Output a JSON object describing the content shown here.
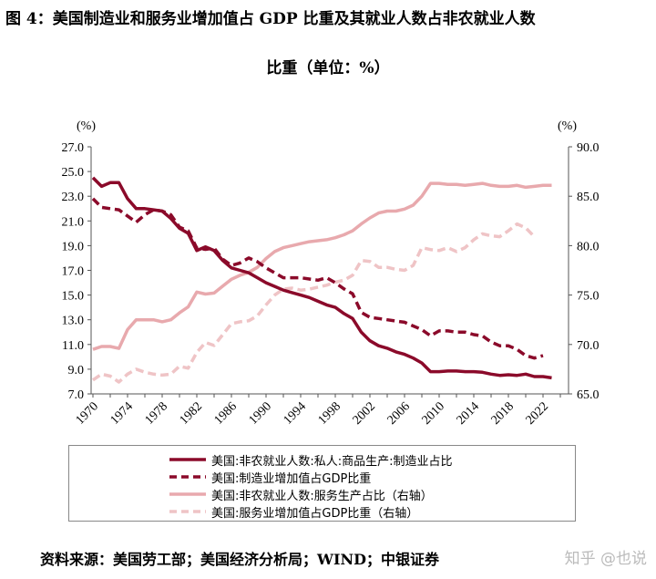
{
  "title_line1": "图 4：美国制造业和服务业增加值占 GDP 比重及其就业人数占非农就业人数",
  "title_line2": "比重（单位：%）",
  "source": "资料来源：美国劳工部；美国经济分析局；WIND；中银证券",
  "watermark": "知乎 @也说",
  "chart_data": {
    "type": "line",
    "left_unit": "(%)",
    "right_unit": "(%)",
    "ylim": [
      7,
      27
    ],
    "y2lim": [
      65,
      90
    ],
    "left_ticks": [
      "27.0",
      "25.0",
      "23.0",
      "21.0",
      "19.0",
      "17.0",
      "15.0",
      "13.0",
      "11.0",
      "9.0",
      "7.0"
    ],
    "right_ticks": [
      "90.0",
      "85.0",
      "80.0",
      "75.0",
      "70.0",
      "65.0"
    ],
    "x_ticks": [
      "1970",
      "1974",
      "1978",
      "1982",
      "1986",
      "1990",
      "1994",
      "1998",
      "2002",
      "2006",
      "2010",
      "2014",
      "2018",
      "2022"
    ],
    "x_start": 1970,
    "series": [
      {
        "name": "美国:非农就业人数:私人:商品生产:制造业占比",
        "axis": "left",
        "style": "solid",
        "color": "#8b0a2a",
        "values": [
          24.5,
          23.8,
          24.1,
          24.1,
          22.8,
          22.0,
          22.0,
          21.9,
          21.8,
          21.2,
          20.4,
          20.0,
          18.6,
          18.9,
          18.6,
          17.8,
          17.2,
          17.0,
          16.8,
          16.4,
          16.0,
          15.7,
          15.4,
          15.2,
          15.0,
          14.8,
          14.5,
          14.2,
          14.0,
          13.5,
          13.1,
          12.0,
          11.3,
          10.9,
          10.7,
          10.4,
          10.2,
          9.9,
          9.5,
          8.8,
          8.8,
          8.85,
          8.85,
          8.8,
          8.8,
          8.75,
          8.6,
          8.5,
          8.55,
          8.5,
          8.6,
          8.4,
          8.4,
          8.3
        ]
      },
      {
        "name": "美国:制造业增加值占GDP比重",
        "axis": "left",
        "style": "dashed",
        "color": "#8b0a2a",
        "values": [
          22.8,
          22.1,
          22.0,
          21.9,
          21.4,
          20.9,
          21.5,
          21.9,
          21.8,
          21.5,
          20.5,
          20.2,
          18.8,
          18.7,
          18.8,
          17.9,
          17.4,
          17.6,
          18.0,
          17.7,
          17.2,
          16.8,
          16.4,
          16.4,
          16.4,
          16.3,
          16.2,
          16.4,
          16.0,
          15.5,
          15.1,
          13.6,
          13.2,
          13.1,
          13.0,
          12.9,
          12.8,
          12.5,
          12.2,
          11.7,
          12.1,
          12.1,
          12.0,
          12.0,
          11.8,
          11.7,
          11.2,
          10.9,
          10.9,
          10.6,
          10.1,
          9.9,
          10.1
        ]
      },
      {
        "name": "美国:非农就业人数:服务生产占比（右轴）",
        "axis": "right",
        "style": "solid",
        "color": "#e8a9ad",
        "values": [
          69.5,
          69.8,
          69.8,
          69.6,
          71.5,
          72.5,
          72.5,
          72.5,
          72.3,
          72.5,
          73.2,
          73.8,
          75.3,
          75.1,
          75.2,
          75.9,
          76.6,
          77.0,
          77.3,
          77.8,
          78.7,
          79.4,
          79.8,
          80.0,
          80.2,
          80.4,
          80.5,
          80.6,
          80.8,
          81.1,
          81.5,
          82.2,
          82.8,
          83.3,
          83.5,
          83.5,
          83.7,
          84.1,
          85.0,
          86.3,
          86.3,
          86.2,
          86.2,
          86.1,
          86.2,
          86.3,
          86.1,
          86.0,
          86.0,
          86.1,
          85.9,
          86.0,
          86.1,
          86.1
        ]
      },
      {
        "name": "美国:服务业增加值占GDP比重（右轴）",
        "axis": "right",
        "style": "dashed",
        "color": "#efc4c6",
        "values": [
          66.4,
          67.0,
          66.8,
          66.2,
          67.0,
          67.5,
          67.2,
          67.0,
          66.9,
          67.0,
          67.8,
          67.6,
          69.2,
          70.2,
          69.9,
          71.0,
          72.1,
          72.3,
          72.4,
          72.9,
          74.0,
          75.0,
          75.6,
          75.7,
          75.5,
          75.6,
          75.8,
          76.0,
          76.3,
          76.5,
          77.0,
          78.5,
          78.4,
          77.8,
          77.8,
          77.6,
          77.5,
          78.0,
          79.8,
          79.6,
          79.5,
          79.8,
          79.4,
          79.8,
          80.6,
          81.2,
          81.0,
          80.9,
          81.5,
          82.2,
          81.8,
          80.9
        ]
      }
    ]
  }
}
